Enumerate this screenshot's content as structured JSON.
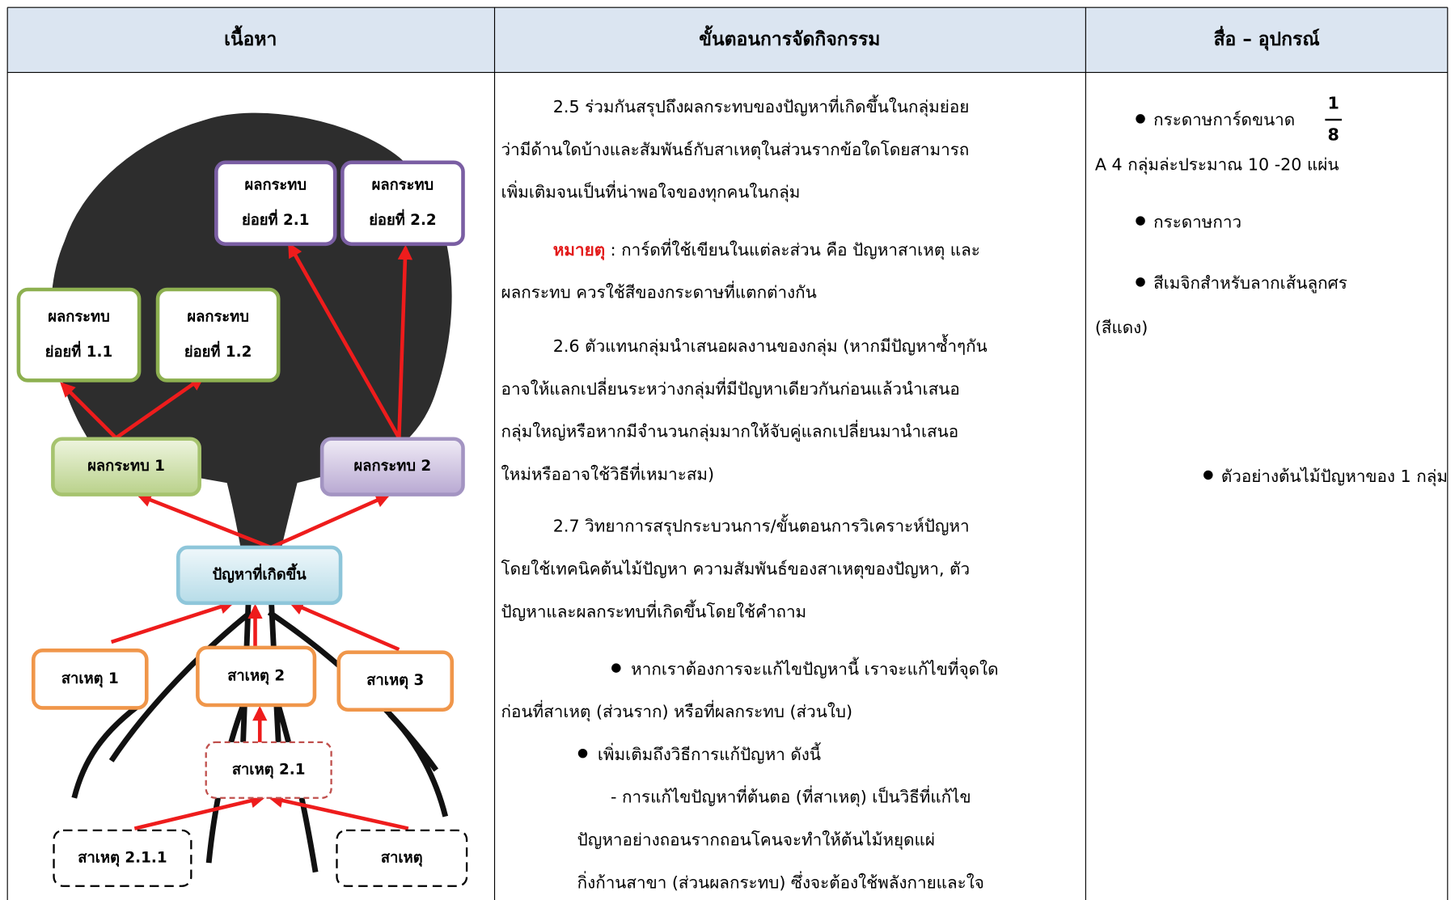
{
  "table": {
    "headers": [
      "เนื้อหา",
      "ขั้นตอนการจัดกิจกรรม",
      "สื่อ – อุปกรณ์"
    ]
  },
  "diagram": {
    "nodes": [
      {
        "lines": [
          "ผลกระทบ",
          "ย่อยที่ 2.1"
        ]
      },
      {
        "lines": [
          "ผลกระทบ",
          "ย่อยที่ 2.2"
        ]
      },
      {
        "lines": [
          "ผลกระทบ",
          "ย่อยที่ 1.1"
        ]
      },
      {
        "lines": [
          "ผลกระทบ",
          "ย่อยที่ 1.2"
        ]
      },
      {
        "lines": [
          "ผลกระทบ 1"
        ]
      },
      {
        "lines": [
          "ผลกระทบ 2"
        ]
      },
      {
        "lines": [
          "ปัญหาที่เกิดขึ้น"
        ]
      },
      {
        "lines": [
          "สาเหตุ 1"
        ]
      },
      {
        "lines": [
          "สาเหตุ 2"
        ]
      },
      {
        "lines": [
          "สาเหตุ 3"
        ]
      },
      {
        "lines": [
          "สาเหตุ 2.1"
        ]
      },
      {
        "lines": [
          "สาเหตุ 2.1.1"
        ]
      },
      {
        "lines": [
          "สาเหตุ"
        ]
      }
    ]
  },
  "activities": {
    "step_2_5": [
      "2.5 ร่วมกันสรุปถึงผลกระทบของปัญหาที่เกิดขึ้นในกลุ่มย่อย",
      "ว่ามีด้านใดบ้างและสัมพันธ์กับสาเหตุในส่วนรากข้อใดโดยสามารถ",
      "เพิ่มเติมจนเป็นที่น่าพอใจของทุกคนในกลุ่ม"
    ],
    "note": {
      "label": "หมายตุ",
      "lines": [
        " : การ์ดที่ใช้เขียนในแต่ละส่วน คือ ปัญหาสาเหตุ และ",
        "ผลกระทบ ควรใช้สีของกระดาษที่แตกต่างกัน"
      ]
    },
    "step_2_6": [
      "2.6 ตัวแทนกลุ่มนำเสนอผลงานของกลุ่ม (หากมีปัญหาซ้ำๆกัน",
      "อาจให้แลกเปลี่ยนระหว่างกลุ่มที่มีปัญหาเดียวกันก่อนแล้วนำเสนอ",
      "กลุ่มใหญ่หรือหากมีจำนวนกลุ่มมากให้จับคู่แลกเปลี่ยนมานำเสนอ",
      "ใหม่หรืออาจใช้วิธีที่เหมาะสม)"
    ],
    "step_2_7": [
      "2.7  วิทยาการสรุปกระบวนการ/ขั้นตอนการวิเคราะห์ปัญหา",
      "โดยใช้เทคนิคต้นไม้ปัญหา ความสัมพันธ์ของสาเหตุของปัญหา, ตัว",
      "ปัญหาและผลกระทบที่เกิดขึ้นโดยใช้คำถาม"
    ],
    "question_1": [
      "หากเราต้องการจะแก้ไขปัญหานี้ เราจะแก้ไขที่จุดใด",
      "ก่อนที่สาเหตุ (ส่วนราก) หรือที่ผลกระทบ (ส่วนใบ)"
    ],
    "question_2": [
      "เพิ่มเติมถึงวิธีการแก้ปัญหา ดังนี้"
    ],
    "solution": [
      "- การแก้ไขปัญหาที่ต้นตอ (ที่สาเหตุ) เป็นวิธีที่แก้ไข",
      "ปัญหาอย่างถอนรากถอนโคนจะทำให้ต้นไม้หยุดแผ่",
      "กิ่งก้านสาขา (ส่วนผลกระทบ) ซึ่งจะต้องใช้พลังกายและใจ"
    ]
  },
  "materials": {
    "card": {
      "text": "กระดาษการ์ดขนาด",
      "fraction": {
        "numerator": "1",
        "denominator": "8"
      },
      "continuation": "A 4 กลุ่มล่ะประมาณ 10 -20 แผ่น"
    },
    "glue": "กระดาษกาว",
    "marker": {
      "text": "สีเมจิกสำหรับลากเส้นลูกศร",
      "color_note": "(สีแดง)"
    },
    "example": "ตัวอย่างต้นไม้ปัญหาของ 1 กลุ่ม"
  }
}
